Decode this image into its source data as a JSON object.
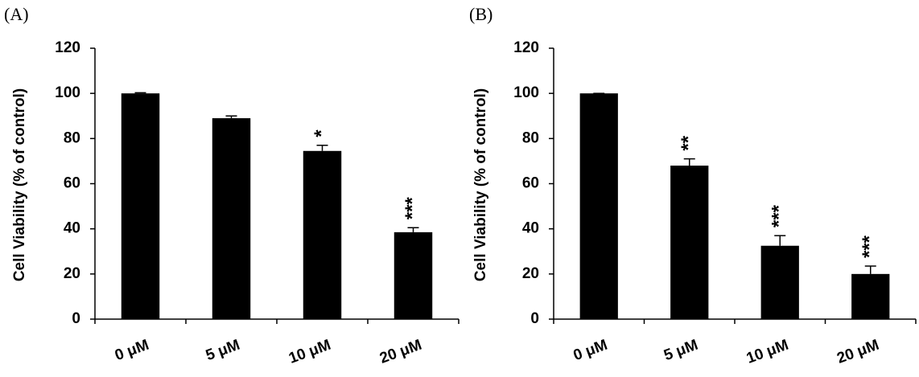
{
  "chart_data": [
    {
      "type": "bar",
      "title": "(A)",
      "y_label": "Cell Viability (% of control)",
      "categories": [
        "0 μM",
        "5 μM",
        "10 μM",
        "20 μM"
      ],
      "values": [
        100,
        89,
        74.5,
        38.5
      ],
      "errors": [
        0.3,
        1,
        2.5,
        2
      ],
      "significance": [
        null,
        null,
        "*",
        "***"
      ],
      "color": "#000000",
      "ylim": [
        0,
        120
      ],
      "yticks": [
        0,
        20,
        40,
        60,
        80,
        100,
        120
      ],
      "grid": false
    },
    {
      "type": "bar",
      "title": "(B)",
      "y_label": "Cell Viability (% of control)",
      "categories": [
        "0 μM",
        "5 μM",
        "10 μM",
        "20 μM"
      ],
      "values": [
        100,
        68,
        32.5,
        20
      ],
      "errors": [
        0,
        3,
        4.5,
        3.5
      ],
      "significance": [
        null,
        "**",
        "***",
        "***"
      ],
      "color": "#000000",
      "ylim": [
        0,
        120
      ],
      "yticks": [
        0,
        20,
        40,
        60,
        80,
        100,
        120
      ],
      "grid": false
    }
  ]
}
